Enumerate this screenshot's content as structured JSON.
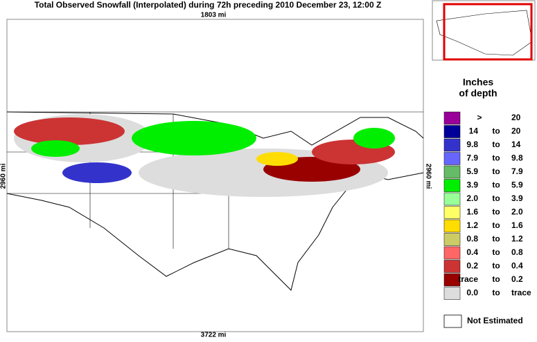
{
  "title": "Total Observed Snowfall (Interpolated) during 72h preceding 2010 December 23, 12:00 Z",
  "map": {
    "top_distance": "1803 mi",
    "bottom_distance": "3722 mi",
    "left_distance": "2960 mi",
    "right_distance": "2960 mi"
  },
  "legend": {
    "title": [
      "Inches",
      "of depth"
    ],
    "items": [
      {
        "parts": [
          ">",
          "20"
        ],
        "color": "#990099"
      },
      {
        "parts": [
          "14",
          "to",
          "20"
        ],
        "color": "#000099"
      },
      {
        "parts": [
          "9.8",
          "to",
          "14"
        ],
        "color": "#3333cc"
      },
      {
        "parts": [
          "7.9",
          "to",
          "9.8"
        ],
        "color": "#6666ff"
      },
      {
        "parts": [
          "5.9",
          "to",
          "7.9"
        ],
        "color": "#66bb66"
      },
      {
        "parts": [
          "3.9",
          "to",
          "5.9"
        ],
        "color": "#00ee00"
      },
      {
        "parts": [
          "2.0",
          "to",
          "3.9"
        ],
        "color": "#99ff99"
      },
      {
        "parts": [
          "1.6",
          "to",
          "2.0"
        ],
        "color": "#ffff66"
      },
      {
        "parts": [
          "1.2",
          "to",
          "1.6"
        ],
        "color": "#ffdd00"
      },
      {
        "parts": [
          "0.8",
          "to",
          "1.2"
        ],
        "color": "#cccc66"
      },
      {
        "parts": [
          "0.4",
          "to",
          "0.8"
        ],
        "color": "#ff6666"
      },
      {
        "parts": [
          "0.2",
          "to",
          "0.4"
        ],
        "color": "#cc3333"
      },
      {
        "parts": [
          "trace",
          "to",
          "0.2"
        ],
        "color": "#990000"
      },
      {
        "parts": [
          "0.0",
          "to",
          "trace"
        ],
        "color": "#dddddd"
      }
    ],
    "not_estimated": {
      "label": "Not Estimated",
      "color": "#ffffff"
    }
  }
}
